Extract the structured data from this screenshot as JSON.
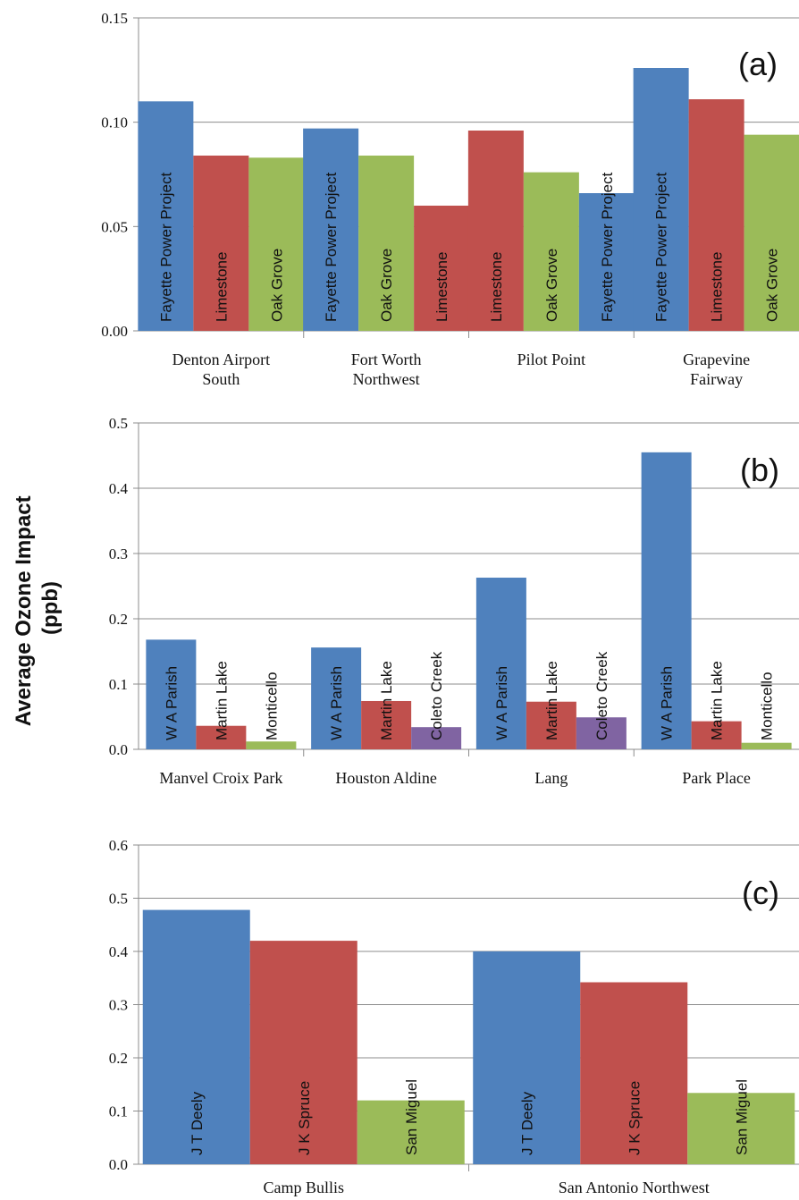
{
  "y_axis_title": [
    "Average Ozone Impact",
    "(ppb)"
  ],
  "colors": {
    "blue": "#4f81bd",
    "red": "#c0504d",
    "green": "#9bbb59",
    "purple": "#8064a2"
  },
  "chart_data": [
    {
      "type": "bar",
      "panel_label": "(a)",
      "ylim": [
        0,
        0.15
      ],
      "yticks": [
        "0.00",
        "0.05",
        "0.10",
        "0.15"
      ],
      "groups": [
        {
          "category": [
            "Denton Airport",
            "South"
          ],
          "bars": [
            {
              "label": "Fayette Power Project",
              "value": 0.11,
              "color": "blue"
            },
            {
              "label": "Limestone",
              "value": 0.084,
              "color": "red"
            },
            {
              "label": "Oak Grove",
              "value": 0.083,
              "color": "green"
            }
          ]
        },
        {
          "category": [
            "Fort Worth",
            "Northwest"
          ],
          "bars": [
            {
              "label": "Fayette Power Project",
              "value": 0.097,
              "color": "blue"
            },
            {
              "label": "Oak Grove",
              "value": 0.084,
              "color": "green"
            },
            {
              "label": "Limestone",
              "value": 0.06,
              "color": "red"
            }
          ]
        },
        {
          "category": [
            "Pilot Point"
          ],
          "bars": [
            {
              "label": "Limestone",
              "value": 0.096,
              "color": "red"
            },
            {
              "label": "Oak Grove",
              "value": 0.076,
              "color": "green"
            },
            {
              "label": "Fayette Power Project",
              "value": 0.066,
              "color": "blue"
            }
          ]
        },
        {
          "category": [
            "Grapevine",
            "Fairway"
          ],
          "bars": [
            {
              "label": "Fayette Power Project",
              "value": 0.126,
              "color": "blue"
            },
            {
              "label": "Limestone",
              "value": 0.111,
              "color": "red"
            },
            {
              "label": "Oak Grove",
              "value": 0.094,
              "color": "green"
            }
          ]
        }
      ]
    },
    {
      "type": "bar",
      "panel_label": "(b)",
      "ylim": [
        0,
        0.5
      ],
      "yticks": [
        "0.0",
        "0.1",
        "0.2",
        "0.3",
        "0.4",
        "0.5"
      ],
      "groups": [
        {
          "category": [
            "Manvel Croix Park"
          ],
          "bars": [
            {
              "label": "W A Parish",
              "value": 0.168,
              "color": "blue"
            },
            {
              "label": "Martin Lake",
              "value": 0.036,
              "color": "red"
            },
            {
              "label": "Monticello",
              "value": 0.012,
              "color": "green"
            }
          ]
        },
        {
          "category": [
            "Houston Aldine"
          ],
          "bars": [
            {
              "label": "W A Parish",
              "value": 0.156,
              "color": "blue"
            },
            {
              "label": "Martin Lake",
              "value": 0.074,
              "color": "red"
            },
            {
              "label": "Coleto Creek",
              "value": 0.034,
              "color": "purple"
            }
          ]
        },
        {
          "category": [
            "Lang"
          ],
          "bars": [
            {
              "label": "W A Parish",
              "value": 0.263,
              "color": "blue"
            },
            {
              "label": "Martin Lake",
              "value": 0.073,
              "color": "red"
            },
            {
              "label": "Coleto Creek",
              "value": 0.049,
              "color": "purple"
            }
          ]
        },
        {
          "category": [
            "Park Place"
          ],
          "bars": [
            {
              "label": "W A Parish",
              "value": 0.455,
              "color": "blue"
            },
            {
              "label": "Martin Lake",
              "value": 0.043,
              "color": "red"
            },
            {
              "label": "Monticello",
              "value": 0.01,
              "color": "green"
            }
          ]
        }
      ]
    },
    {
      "type": "bar",
      "panel_label": "(c)",
      "ylim": [
        0,
        0.6
      ],
      "yticks": [
        "0.0",
        "0.1",
        "0.2",
        "0.3",
        "0.4",
        "0.5",
        "0.6"
      ],
      "groups": [
        {
          "category": [
            "Camp Bullis"
          ],
          "bars": [
            {
              "label": "J T Deely",
              "value": 0.478,
              "color": "blue"
            },
            {
              "label": "J K Spruce",
              "value": 0.42,
              "color": "red"
            },
            {
              "label": "San Miguel",
              "value": 0.12,
              "color": "green"
            }
          ]
        },
        {
          "category": [
            "San Antonio Northwest"
          ],
          "bars": [
            {
              "label": "J T Deely",
              "value": 0.4,
              "color": "blue"
            },
            {
              "label": "J K Spruce",
              "value": 0.342,
              "color": "red"
            },
            {
              "label": "San Miguel",
              "value": 0.134,
              "color": "green"
            }
          ]
        }
      ]
    }
  ]
}
